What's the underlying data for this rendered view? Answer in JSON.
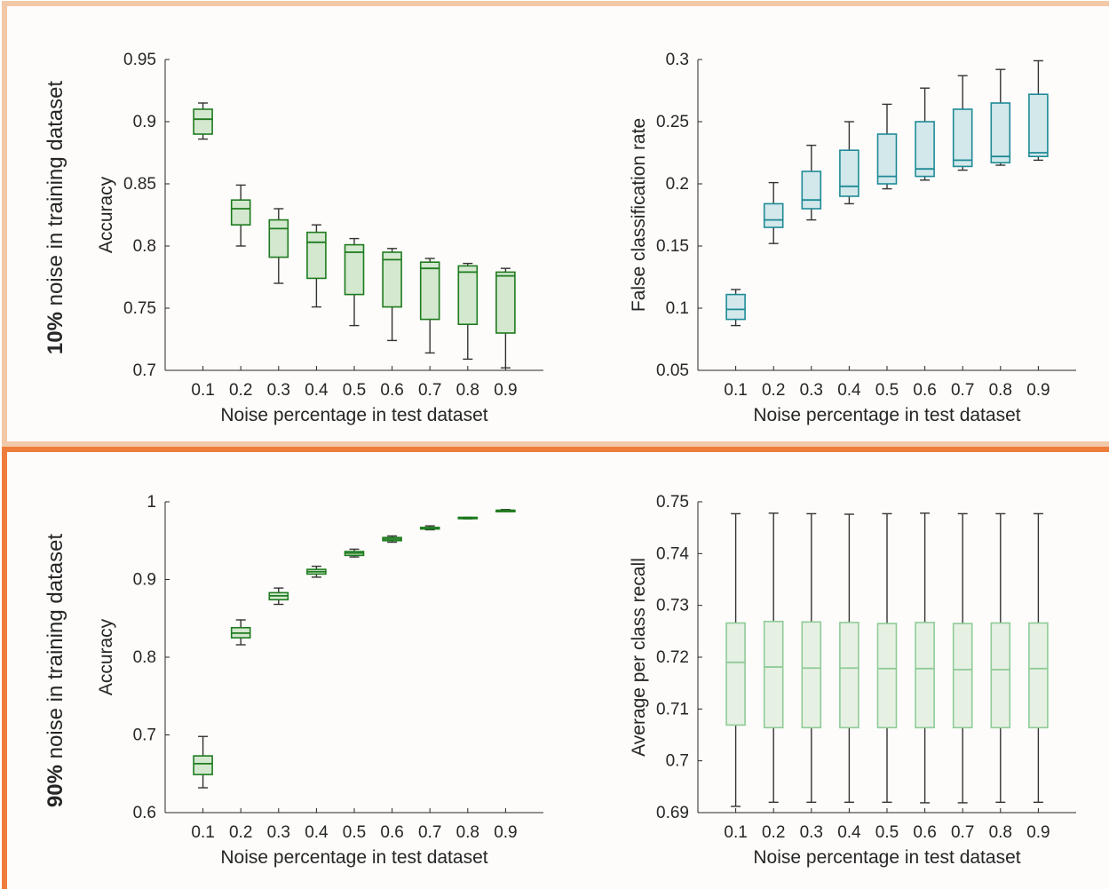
{
  "rows": [
    {
      "label_bold": "10%",
      "label_rest": " noise in training dataset",
      "border_color": "#F2C9A8"
    },
    {
      "label_bold": "90%",
      "label_rest": " noise in training dataset",
      "border_color": "#EE7D3B"
    }
  ],
  "chart_data": [
    {
      "type": "box",
      "title": "",
      "xlabel": "Noise percentage in test dataset",
      "ylabel": "Accuracy",
      "categories": [
        "0.1",
        "0.2",
        "0.3",
        "0.4",
        "0.5",
        "0.6",
        "0.7",
        "0.8",
        "0.9"
      ],
      "ylim": [
        0.7,
        0.95
      ],
      "yticks": [
        "0.7",
        "0.75",
        "0.8",
        "0.85",
        "0.9",
        "0.95"
      ],
      "colors": {
        "stroke": "#1E7B1E",
        "fill": "#D3E8CF"
      },
      "boxes": [
        {
          "whisker_low": 0.886,
          "q1": 0.89,
          "median": 0.902,
          "q3": 0.91,
          "whisker_high": 0.915
        },
        {
          "whisker_low": 0.8,
          "q1": 0.817,
          "median": 0.83,
          "q3": 0.837,
          "whisker_high": 0.849
        },
        {
          "whisker_low": 0.77,
          "q1": 0.791,
          "median": 0.814,
          "q3": 0.821,
          "whisker_high": 0.83
        },
        {
          "whisker_low": 0.751,
          "q1": 0.774,
          "median": 0.803,
          "q3": 0.811,
          "whisker_high": 0.817
        },
        {
          "whisker_low": 0.736,
          "q1": 0.761,
          "median": 0.795,
          "q3": 0.801,
          "whisker_high": 0.806
        },
        {
          "whisker_low": 0.724,
          "q1": 0.751,
          "median": 0.789,
          "q3": 0.795,
          "whisker_high": 0.798
        },
        {
          "whisker_low": 0.714,
          "q1": 0.741,
          "median": 0.782,
          "q3": 0.787,
          "whisker_high": 0.79
        },
        {
          "whisker_low": 0.709,
          "q1": 0.737,
          "median": 0.779,
          "q3": 0.784,
          "whisker_high": 0.786
        },
        {
          "whisker_low": 0.702,
          "q1": 0.73,
          "median": 0.776,
          "q3": 0.779,
          "whisker_high": 0.782
        }
      ]
    },
    {
      "type": "box",
      "title": "",
      "xlabel": "Noise percentage in test dataset",
      "ylabel": "False classification rate",
      "categories": [
        "0.1",
        "0.2",
        "0.3",
        "0.4",
        "0.5",
        "0.6",
        "0.7",
        "0.8",
        "0.9"
      ],
      "ylim": [
        0.05,
        0.3
      ],
      "yticks": [
        "0.05",
        "0.1",
        "0.15",
        "0.2",
        "0.25",
        "0.3"
      ],
      "colors": {
        "stroke": "#1E8A96",
        "fill": "#D2E8EB"
      },
      "boxes": [
        {
          "whisker_low": 0.086,
          "q1": 0.091,
          "median": 0.099,
          "q3": 0.111,
          "whisker_high": 0.115
        },
        {
          "whisker_low": 0.152,
          "q1": 0.165,
          "median": 0.171,
          "q3": 0.184,
          "whisker_high": 0.201
        },
        {
          "whisker_low": 0.171,
          "q1": 0.18,
          "median": 0.187,
          "q3": 0.21,
          "whisker_high": 0.231
        },
        {
          "whisker_low": 0.184,
          "q1": 0.19,
          "median": 0.198,
          "q3": 0.227,
          "whisker_high": 0.25
        },
        {
          "whisker_low": 0.196,
          "q1": 0.2,
          "median": 0.206,
          "q3": 0.24,
          "whisker_high": 0.264
        },
        {
          "whisker_low": 0.203,
          "q1": 0.206,
          "median": 0.212,
          "q3": 0.25,
          "whisker_high": 0.277
        },
        {
          "whisker_low": 0.211,
          "q1": 0.214,
          "median": 0.219,
          "q3": 0.26,
          "whisker_high": 0.287
        },
        {
          "whisker_low": 0.215,
          "q1": 0.217,
          "median": 0.222,
          "q3": 0.265,
          "whisker_high": 0.292
        },
        {
          "whisker_low": 0.219,
          "q1": 0.222,
          "median": 0.225,
          "q3": 0.272,
          "whisker_high": 0.299
        }
      ]
    },
    {
      "type": "box",
      "title": "",
      "xlabel": "Noise percentage in test dataset",
      "ylabel": "Accuracy",
      "categories": [
        "0.1",
        "0.2",
        "0.3",
        "0.4",
        "0.5",
        "0.6",
        "0.7",
        "0.8",
        "0.9"
      ],
      "ylim": [
        0.6,
        1.0
      ],
      "yticks": [
        "0.6",
        "0.7",
        "0.8",
        "0.9",
        "1"
      ],
      "colors": {
        "stroke": "#1E7B1E",
        "fill": "#D3E8CF"
      },
      "boxes": [
        {
          "whisker_low": 0.632,
          "q1": 0.649,
          "median": 0.663,
          "q3": 0.673,
          "whisker_high": 0.698
        },
        {
          "whisker_low": 0.816,
          "q1": 0.825,
          "median": 0.831,
          "q3": 0.838,
          "whisker_high": 0.848
        },
        {
          "whisker_low": 0.868,
          "q1": 0.874,
          "median": 0.879,
          "q3": 0.883,
          "whisker_high": 0.889
        },
        {
          "whisker_low": 0.903,
          "q1": 0.907,
          "median": 0.91,
          "q3": 0.913,
          "whisker_high": 0.917
        },
        {
          "whisker_low": 0.929,
          "q1": 0.931,
          "median": 0.934,
          "q3": 0.936,
          "whisker_high": 0.939
        },
        {
          "whisker_low": 0.948,
          "q1": 0.95,
          "median": 0.952,
          "q3": 0.954,
          "whisker_high": 0.956
        },
        {
          "whisker_low": 0.964,
          "q1": 0.965,
          "median": 0.966,
          "q3": 0.967,
          "whisker_high": 0.969
        },
        {
          "whisker_low": 0.978,
          "q1": 0.979,
          "median": 0.979,
          "q3": 0.98,
          "whisker_high": 0.98
        },
        {
          "whisker_low": 0.988,
          "q1": 0.988,
          "median": 0.989,
          "q3": 0.989,
          "whisker_high": 0.99
        }
      ]
    },
    {
      "type": "box",
      "title": "",
      "xlabel": "Noise percentage in test dataset",
      "ylabel": "Average per class recall",
      "categories": [
        "0.1",
        "0.2",
        "0.3",
        "0.4",
        "0.5",
        "0.6",
        "0.7",
        "0.8",
        "0.9"
      ],
      "ylim": [
        0.69,
        0.75
      ],
      "yticks": [
        "0.69",
        "0.7",
        "0.71",
        "0.72",
        "0.73",
        "0.74",
        "0.75"
      ],
      "colors": {
        "stroke": "#8FCB97",
        "fill": "#E6F1E4"
      },
      "whisker_color": "#333333",
      "boxes": [
        {
          "whisker_low": 0.6912,
          "q1": 0.7069,
          "median": 0.719,
          "q3": 0.7266,
          "whisker_high": 0.7477
        },
        {
          "whisker_low": 0.692,
          "q1": 0.7064,
          "median": 0.7181,
          "q3": 0.7269,
          "whisker_high": 0.7478
        },
        {
          "whisker_low": 0.692,
          "q1": 0.7064,
          "median": 0.7179,
          "q3": 0.7268,
          "whisker_high": 0.7477
        },
        {
          "whisker_low": 0.692,
          "q1": 0.7064,
          "median": 0.7179,
          "q3": 0.7267,
          "whisker_high": 0.7476
        },
        {
          "whisker_low": 0.692,
          "q1": 0.7064,
          "median": 0.7178,
          "q3": 0.7265,
          "whisker_high": 0.7477
        },
        {
          "whisker_low": 0.6919,
          "q1": 0.7064,
          "median": 0.7178,
          "q3": 0.7267,
          "whisker_high": 0.7478
        },
        {
          "whisker_low": 0.6919,
          "q1": 0.7064,
          "median": 0.7176,
          "q3": 0.7265,
          "whisker_high": 0.7477
        },
        {
          "whisker_low": 0.692,
          "q1": 0.7064,
          "median": 0.7176,
          "q3": 0.7266,
          "whisker_high": 0.7477
        },
        {
          "whisker_low": 0.692,
          "q1": 0.7064,
          "median": 0.7178,
          "q3": 0.7266,
          "whisker_high": 0.7477
        }
      ]
    }
  ]
}
